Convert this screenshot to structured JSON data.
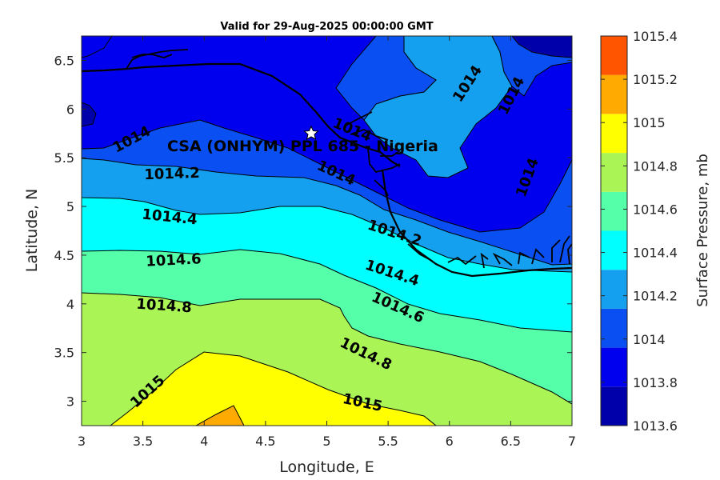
{
  "chart_data": {
    "type": "heatmap",
    "subtype": "filled-contour",
    "title": "Valid for 29-Aug-2025 00:00:00 GMT",
    "xlabel": "Longitude, E",
    "ylabel": "Latitude, N",
    "xlim": [
      3,
      7
    ],
    "ylim": [
      2.75,
      6.75
    ],
    "xticks": [
      "3",
      "3.5",
      "4",
      "4.5",
      "5",
      "5.5",
      "6",
      "6.5",
      "7"
    ],
    "yticks": [
      "3",
      "3.5",
      "4",
      "4.5",
      "5",
      "5.5",
      "6",
      "6.5"
    ],
    "colorbar": {
      "label": "Surface Pressure, mb",
      "ticks": [
        "1013.6",
        "1013.8",
        "1014",
        "1014.2",
        "1014.4",
        "1014.6",
        "1014.8",
        "1015",
        "1015.2",
        "1015.4"
      ],
      "levels": [
        1013.6,
        1013.8,
        1014.0,
        1014.2,
        1014.4,
        1014.6,
        1014.8,
        1015.0,
        1015.2,
        1015.4
      ],
      "colors": [
        "#0000aa",
        "#0000ee",
        "#0a4ff2",
        "#14a0ee",
        "#00ffff",
        "#55ffaa",
        "#aaf555",
        "#ffff00",
        "#ffaa00",
        "#ff5500"
      ]
    },
    "contour_labels": [
      "1014",
      "1014",
      "1014",
      "1014",
      "1014",
      "1014.2",
      "1014.2",
      "1014.2",
      "1014.4",
      "1014.4",
      "1014.6",
      "1014.6",
      "1014.8",
      "1014.8",
      "1015",
      "1015"
    ],
    "site": {
      "name": "CSA (ONHYM) PPL 685 - Nigeria",
      "lon": 4.88,
      "lat": 5.75,
      "marker": "star"
    },
    "grid": false
  }
}
